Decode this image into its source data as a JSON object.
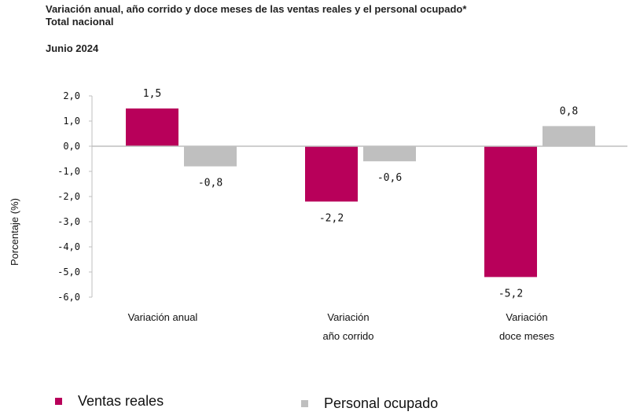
{
  "header": {
    "title_line1": "Variación anual, año corrido y doce meses de las ventas reales y el personal ocupado*",
    "title_line2": "Total nacional",
    "date": "Junio 2024"
  },
  "colors": {
    "ventas": "#B8005A",
    "personal": "#BFBFBF",
    "axis": "#BFBFBF"
  },
  "chart_data": {
    "type": "bar",
    "title": "Variación anual, año corrido y doce meses de las ventas reales y el personal ocupado*",
    "subtitle": "Total nacional",
    "xlabel": "",
    "ylabel": "Porcentaje (%)",
    "ylim": [
      -6.0,
      2.0
    ],
    "yticks": [
      2.0,
      1.0,
      0.0,
      -1.0,
      -2.0,
      -3.0,
      -4.0,
      -5.0,
      -6.0
    ],
    "ytick_labels": [
      "2,0",
      "1,0",
      "0,0",
      "-1,0",
      "-2,0",
      "-3,0",
      "-4,0",
      "-5,0",
      "-6,0"
    ],
    "categories": [
      {
        "line1": "Variación anual",
        "line2": ""
      },
      {
        "line1": "Variación",
        "line2": "año corrido"
      },
      {
        "line1": "Variación",
        "line2": "doce meses"
      }
    ],
    "series": [
      {
        "name": "Ventas reales",
        "values": [
          1.5,
          -2.2,
          -5.2
        ],
        "labels": [
          "1,5",
          "-2,2",
          "-5,2"
        ]
      },
      {
        "name": "Personal ocupado",
        "values": [
          -0.8,
          -0.6,
          0.8
        ],
        "labels": [
          "-0,8",
          "-0,6",
          "0,8"
        ]
      }
    ],
    "legend": "bottom"
  }
}
